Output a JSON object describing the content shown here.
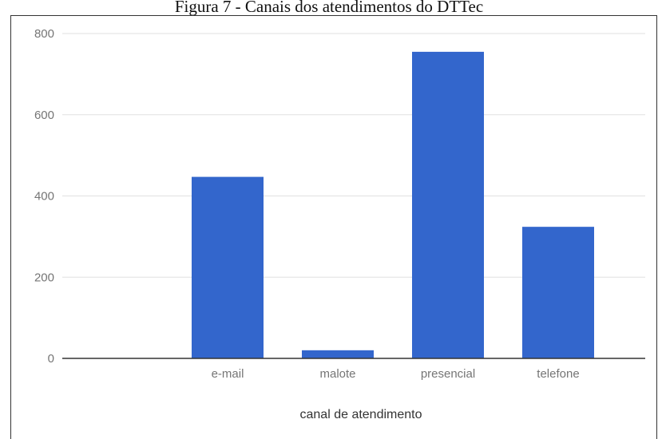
{
  "caption": "Figura 7 - Canais dos atendimentos do DTTec",
  "chart_data": {
    "type": "bar",
    "title": "",
    "categories": [
      "",
      "e-mail",
      "malote",
      "presencial",
      "telefone"
    ],
    "values": [
      0,
      447,
      20,
      755,
      324
    ],
    "xlabel": "canal de atendimento",
    "ylabel": "",
    "ylim": [
      0,
      800
    ],
    "yticks": [
      "0",
      "200",
      "400",
      "600",
      "800"
    ],
    "grid": true,
    "legend": "none",
    "bar_color": "#3366cc",
    "grid_color": "#e0e0e0",
    "baseline_color": "#333333"
  }
}
